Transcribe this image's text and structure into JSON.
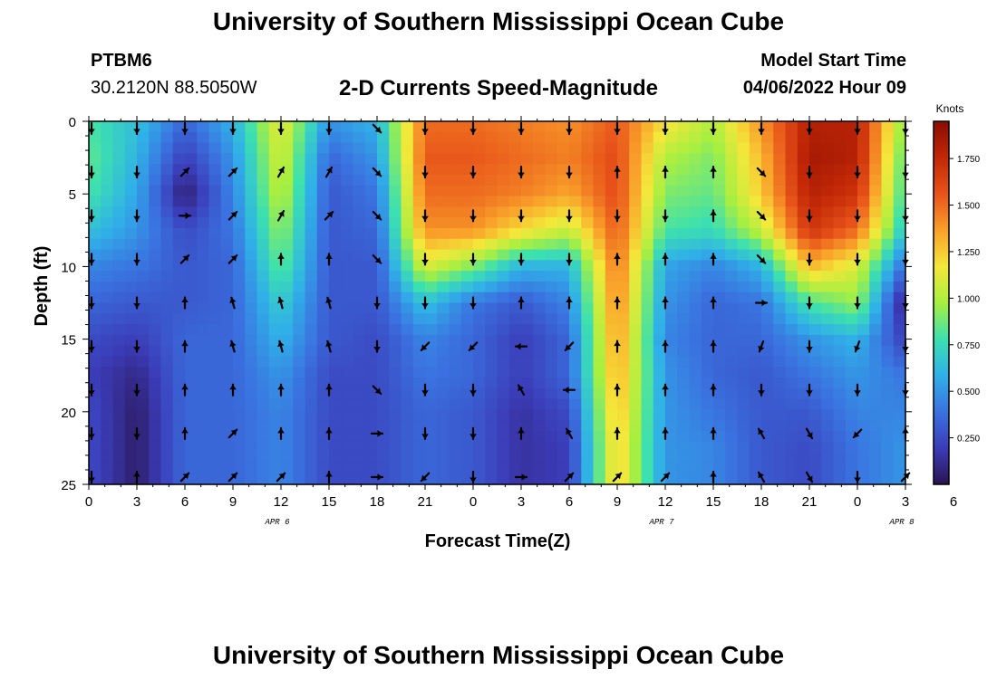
{
  "header": {
    "title": "University of Southern Mississippi Ocean Cube",
    "station": "PTBM6",
    "coords": "30.2120N  88.5050W",
    "subtitle": "2-D Currents Speed-Magnitude",
    "model_start_label": "Model Start Time",
    "model_start_value": "04/06/2022 Hour 09"
  },
  "footer": {
    "title": "University of Southern Mississippi Ocean Cube"
  },
  "colors": {
    "scale": [
      "#2a1450",
      "#3b3cb8",
      "#3a72e0",
      "#30b0e8",
      "#3ce0b0",
      "#a8ef40",
      "#f4e83a",
      "#f9a02a",
      "#e8541a",
      "#c22806",
      "#8a0c04"
    ]
  },
  "chart_data": {
    "type": "heatmap",
    "title": "2-D Currents Speed-Magnitude",
    "xlabel": "Forecast Time(Z)",
    "ylabel": "Depth (ft)",
    "x_hours": [
      0,
      51
    ],
    "xticks": [
      "0",
      "3",
      "6",
      "9",
      "12",
      "15",
      "18",
      "21",
      "0",
      "3",
      "6",
      "9",
      "12",
      "15",
      "18",
      "21",
      "0",
      "3",
      "6"
    ],
    "date_labels": [
      {
        "label": "APR 6",
        "hour": 12
      },
      {
        "label": "APR 7",
        "hour": 36
      },
      {
        "label": "APR 8",
        "hour": 51
      }
    ],
    "ylim": [
      0,
      25
    ],
    "yticks": [
      "0",
      "5",
      "10",
      "15",
      "20",
      "25"
    ],
    "colorbar": {
      "label": "Knots",
      "range": [
        0.0,
        1.95
      ],
      "ticks": [
        "0.250",
        "0.500",
        "0.750",
        "1.000",
        "1.250",
        "1.500",
        "1.750"
      ]
    },
    "vector_depths_ft": [
      0.5,
      3.5,
      6.5,
      9.5,
      12.5,
      15.5,
      18.5,
      21.5,
      24.5
    ],
    "speed_field_hours": [
      0,
      3,
      6,
      9,
      12,
      15,
      18,
      21,
      24,
      27,
      30,
      33,
      36,
      39,
      42,
      45,
      48,
      51
    ],
    "speed_field_knots": [
      [
        0.8,
        0.65,
        0.35,
        0.6,
        1.15,
        0.5,
        0.6,
        1.5,
        1.5,
        1.45,
        1.4,
        1.55,
        1.2,
        1.0,
        1.4,
        1.8,
        1.8,
        0.9
      ],
      [
        0.85,
        0.6,
        0.2,
        0.5,
        1.1,
        0.35,
        0.5,
        1.55,
        1.55,
        1.5,
        1.45,
        1.6,
        1.0,
        0.9,
        1.3,
        1.85,
        1.8,
        0.8
      ],
      [
        0.8,
        0.55,
        0.05,
        0.45,
        1.05,
        0.3,
        0.4,
        1.5,
        1.5,
        1.45,
        1.35,
        1.6,
        0.9,
        0.85,
        1.25,
        1.8,
        1.7,
        0.75
      ],
      [
        0.65,
        0.5,
        0.25,
        0.4,
        0.95,
        0.3,
        0.35,
        1.4,
        1.4,
        1.2,
        1.05,
        1.55,
        0.8,
        0.75,
        1.05,
        1.7,
        1.5,
        0.65
      ],
      [
        0.45,
        0.4,
        0.3,
        0.35,
        0.85,
        0.3,
        0.3,
        1.1,
        0.9,
        0.6,
        0.6,
        1.5,
        0.55,
        0.45,
        0.6,
        1.3,
        1.1,
        0.35
      ],
      [
        0.35,
        0.3,
        0.3,
        0.35,
        0.7,
        0.3,
        0.3,
        0.65,
        0.4,
        0.3,
        0.45,
        1.45,
        0.5,
        0.35,
        0.4,
        0.8,
        0.95,
        0.05
      ],
      [
        0.25,
        0.2,
        0.35,
        0.35,
        0.6,
        0.3,
        0.25,
        0.45,
        0.35,
        0.2,
        0.35,
        1.4,
        0.45,
        0.35,
        0.35,
        0.5,
        0.6,
        0.2
      ],
      [
        0.2,
        0.1,
        0.35,
        0.35,
        0.5,
        0.25,
        0.25,
        0.4,
        0.35,
        0.2,
        0.35,
        1.35,
        0.5,
        0.35,
        0.3,
        0.4,
        0.5,
        0.4
      ],
      [
        0.25,
        0.05,
        0.35,
        0.35,
        0.45,
        0.25,
        0.25,
        0.35,
        0.3,
        0.15,
        0.25,
        1.3,
        0.5,
        0.4,
        0.3,
        0.3,
        0.45,
        0.45
      ],
      [
        0.25,
        0.05,
        0.35,
        0.35,
        0.45,
        0.25,
        0.25,
        0.35,
        0.3,
        0.15,
        0.2,
        1.25,
        0.5,
        0.45,
        0.3,
        0.25,
        0.4,
        0.5
      ]
    ],
    "speed_field_depths_ft": [
      0,
      2.5,
      5,
      7.5,
      10,
      12.5,
      15,
      17.5,
      20,
      22.5
    ],
    "vector_hours": [
      0,
      3,
      6,
      9,
      12,
      15,
      18,
      21,
      24,
      27,
      30,
      33,
      36,
      39,
      42,
      45,
      48,
      51
    ],
    "vector_dir_deg": [
      [
        180,
        180,
        180,
        180,
        180,
        180,
        135,
        180,
        180,
        180,
        180,
        180,
        180,
        180,
        180,
        180,
        180,
        180
      ],
      [
        180,
        180,
        45,
        45,
        30,
        30,
        135,
        180,
        180,
        180,
        180,
        0,
        0,
        0,
        135,
        180,
        180,
        180
      ],
      [
        180,
        180,
        90,
        45,
        30,
        45,
        135,
        180,
        180,
        180,
        180,
        180,
        180,
        0,
        135,
        180,
        180,
        180
      ],
      [
        180,
        180,
        45,
        45,
        0,
        0,
        135,
        180,
        180,
        180,
        180,
        0,
        0,
        0,
        135,
        180,
        180,
        180
      ],
      [
        180,
        180,
        0,
        345,
        345,
        345,
        180,
        180,
        180,
        0,
        0,
        0,
        0,
        0,
        90,
        180,
        180,
        180
      ],
      [
        180,
        180,
        0,
        345,
        345,
        345,
        180,
        225,
        225,
        270,
        225,
        0,
        0,
        0,
        200,
        180,
        200,
        180
      ],
      [
        180,
        180,
        0,
        0,
        0,
        0,
        135,
        180,
        180,
        330,
        270,
        0,
        0,
        0,
        180,
        180,
        180,
        180
      ],
      [
        180,
        180,
        0,
        45,
        0,
        0,
        90,
        180,
        180,
        0,
        330,
        0,
        0,
        0,
        330,
        150,
        225,
        0
      ],
      [
        180,
        0,
        45,
        45,
        45,
        0,
        90,
        225,
        180,
        90,
        45,
        45,
        45,
        0,
        330,
        150,
        180,
        45
      ]
    ]
  }
}
